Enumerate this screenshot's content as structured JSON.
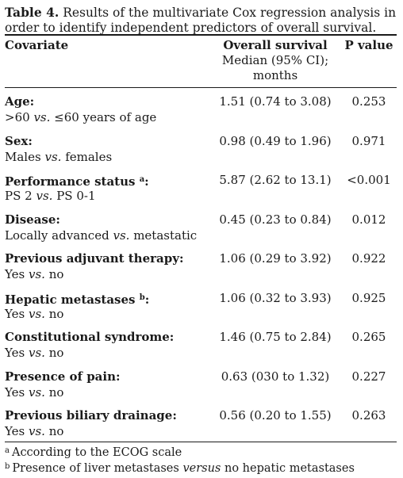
{
  "caption": {
    "label": "Table 4.",
    "text": "Results of the multivariate Cox regression analysis in order to identify independent predictors of overall survival."
  },
  "header": {
    "covariate": "Covariate",
    "os_title": "Overall survival",
    "os_sub": "Median (95% CI);",
    "os_unit": "months",
    "pvalue": "P value"
  },
  "rows": [
    {
      "name": "Age:",
      "sup": "",
      "left": ">60",
      "vs": "vs.",
      "right": "≤60 years of age",
      "os": "1.51 (0.74 to 3.08)",
      "p": "0.253"
    },
    {
      "name": "Sex:",
      "sup": "",
      "left": "Males",
      "vs": "vs.",
      "right": "females",
      "os": "0.98 (0.49 to 1.96)",
      "p": "0.971"
    },
    {
      "name": "Performance status",
      "sup": "a",
      "colon": ":",
      "left": "PS 2",
      "vs": "vs.",
      "right": "PS 0-1",
      "os": "5.87 (2.62 to 13.1)",
      "p": "<0.001"
    },
    {
      "name": "Disease:",
      "sup": "",
      "left": "Locally advanced",
      "vs": "vs.",
      "right": "metastatic",
      "os": "0.45 (0.23 to 0.84)",
      "p": "0.012"
    },
    {
      "name": "Previous adjuvant therapy:",
      "sup": "",
      "left": "Yes",
      "vs": "vs.",
      "right": "no",
      "os": "1.06 (0.29 to 3.92)",
      "p": "0.922"
    },
    {
      "name": "Hepatic metastases",
      "sup": "b",
      "colon": ":",
      "left": "Yes",
      "vs": "vs.",
      "right": "no",
      "os": "1.06 (0.32 to 3.93)",
      "p": "0.925"
    },
    {
      "name": "Constitutional syndrome:",
      "sup": "",
      "left": "Yes",
      "vs": "vs.",
      "right": "no",
      "os": "1.46 (0.75 to 2.84)",
      "p": "0.265"
    },
    {
      "name": "Presence of pain:",
      "sup": "",
      "left": "Yes",
      "vs": "vs.",
      "right": "no",
      "os": "0.63 (030 to 1.32)",
      "p": "0.227"
    },
    {
      "name": "Previous biliary drainage:",
      "sup": "",
      "left": "Yes",
      "vs": "vs.",
      "right": "no",
      "os": "0.56 (0.20 to 1.55)",
      "p": "0.263"
    }
  ],
  "footnotes": {
    "a": {
      "mark": "a",
      "text": "According to the ECOG scale"
    },
    "b": {
      "mark": "b",
      "pre": "Presence of liver metastases",
      "versus": "versus",
      "post": "no hepatic metastases"
    }
  }
}
